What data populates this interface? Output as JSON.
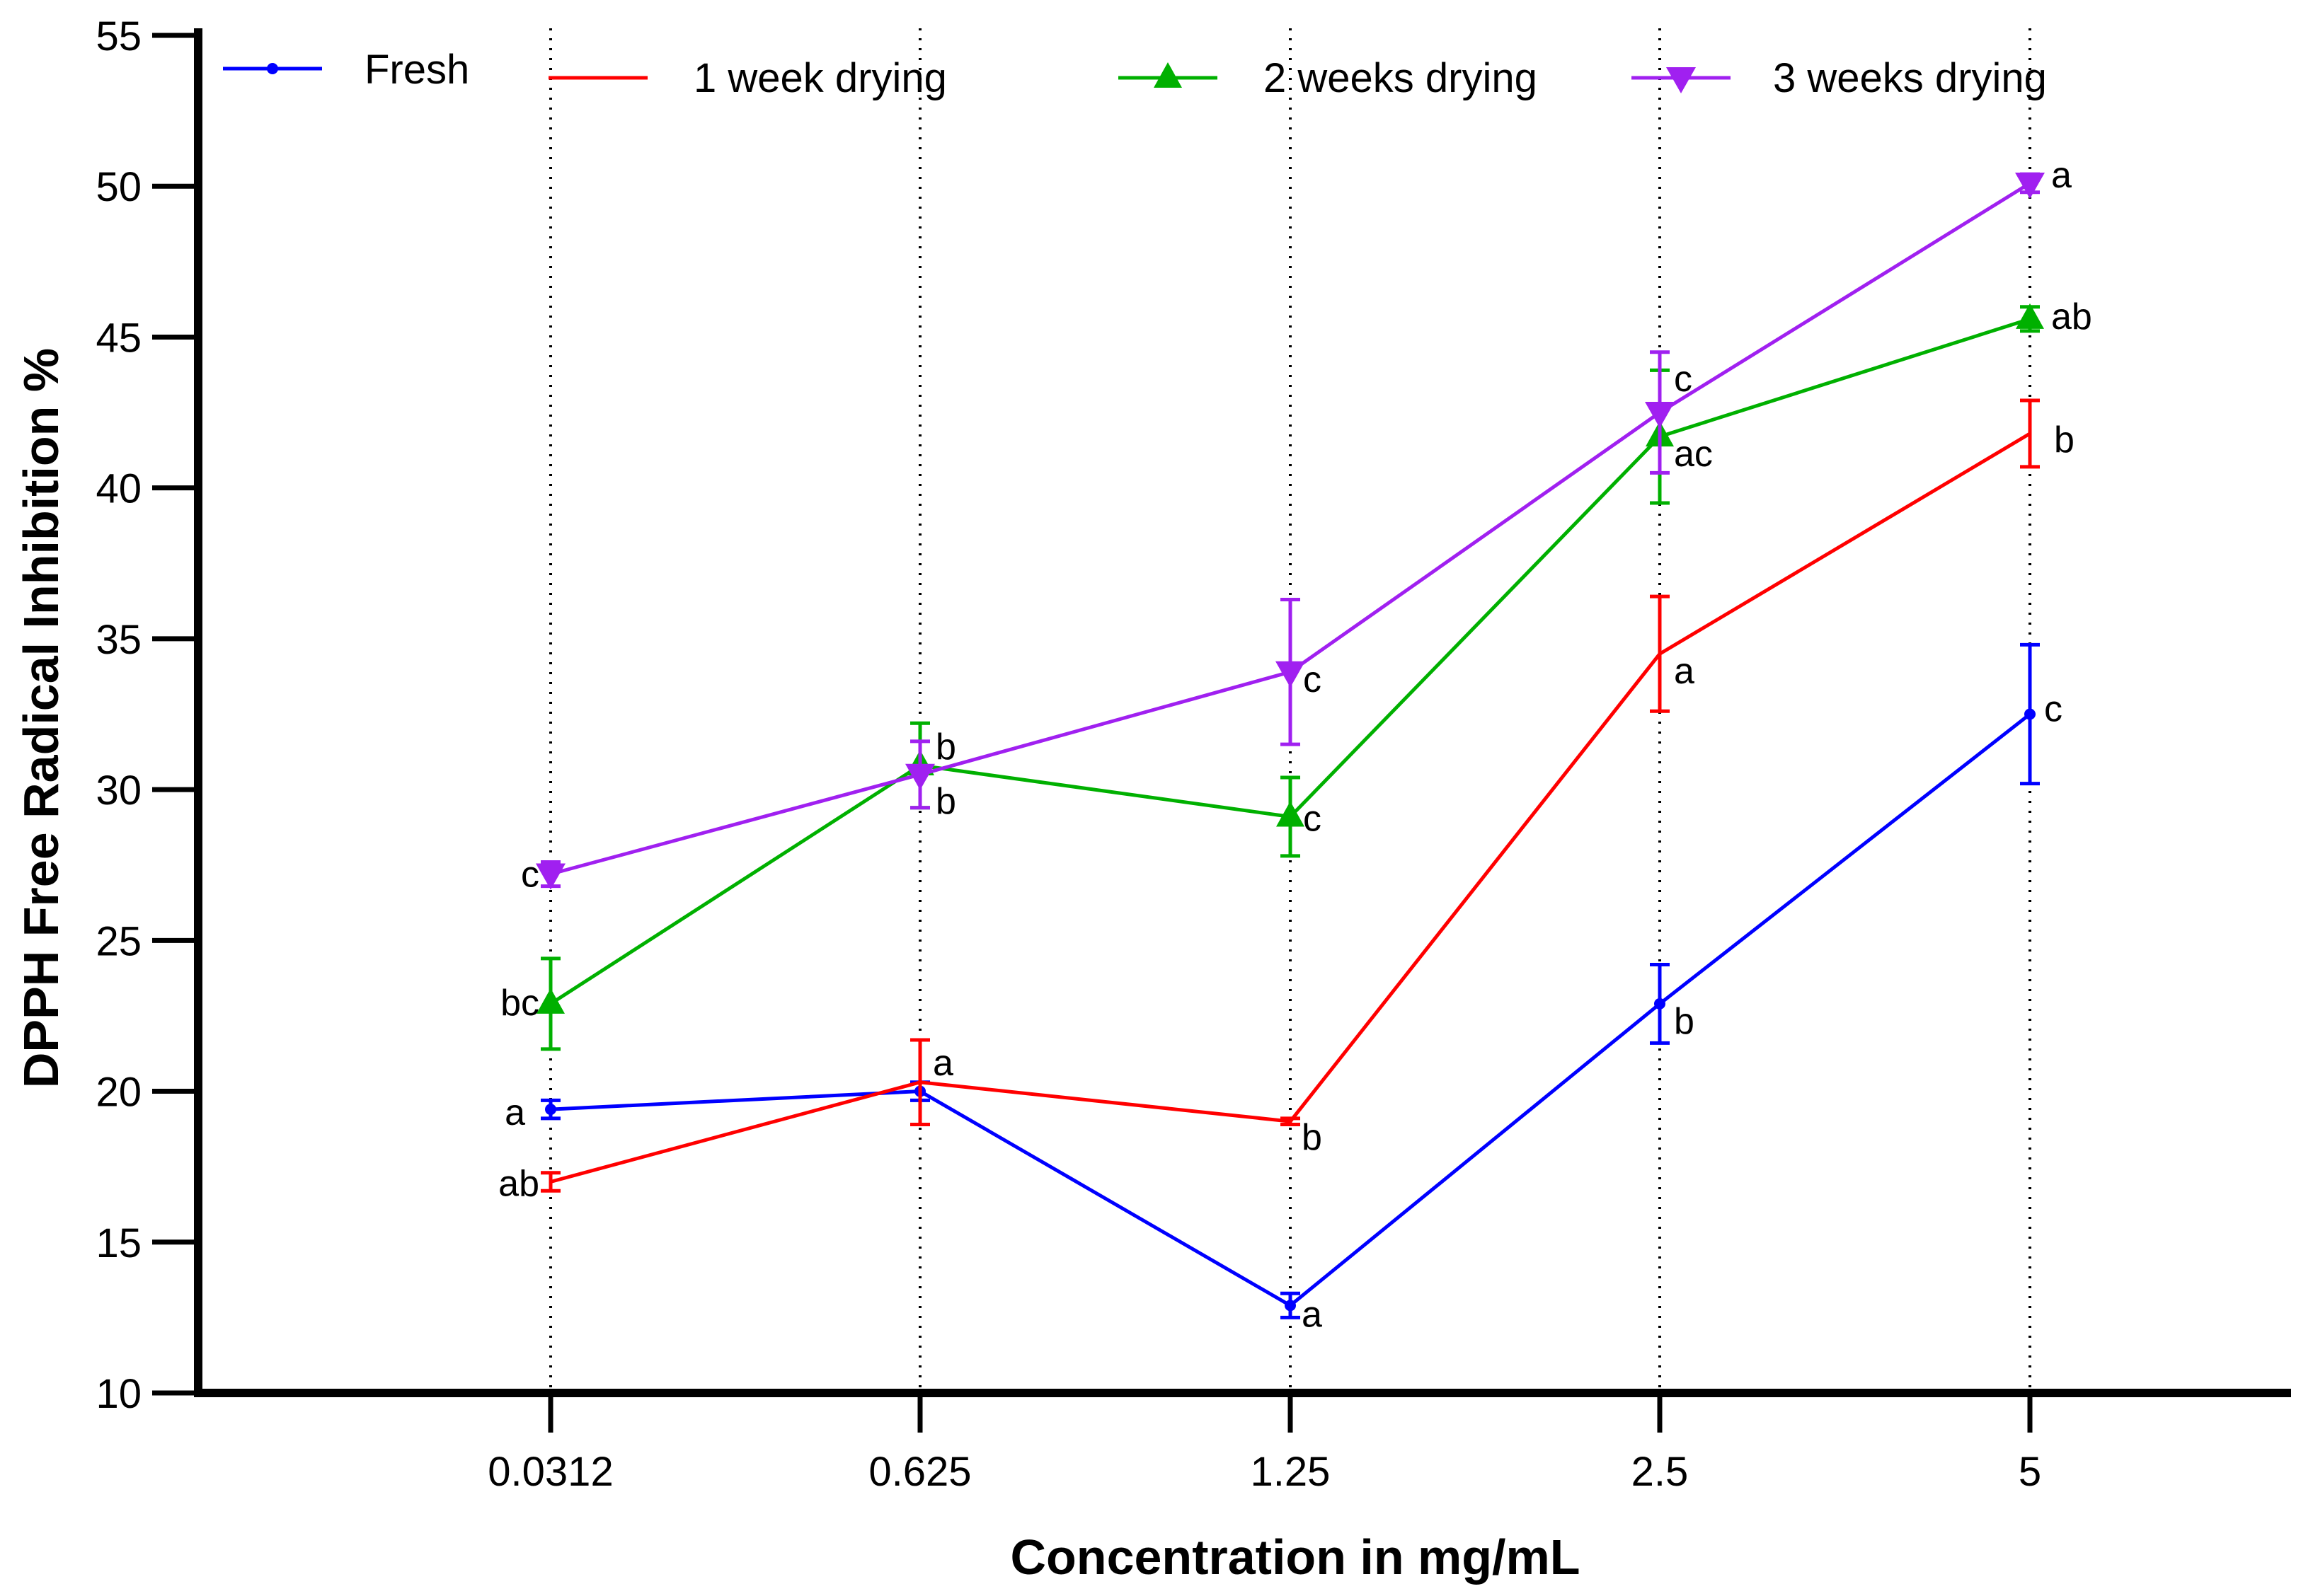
{
  "chart_data": {
    "type": "line",
    "xlabel": "Concentration in mg/mL",
    "ylabel": "DPPH Free Radical Inhibition %",
    "categories": [
      "0.0312",
      "0.625",
      "1.25",
      "2.5",
      "5"
    ],
    "ylim": [
      10,
      55
    ],
    "yticks": [
      10,
      15,
      20,
      25,
      30,
      35,
      40,
      45,
      50,
      55
    ],
    "grid": "vertical dotted lines at each category",
    "legend_position": "top",
    "series": [
      {
        "name": "Fresh",
        "color": "#0000ff",
        "marker": "dot",
        "values": [
          19.4,
          20.0,
          12.9,
          22.9,
          32.5
        ],
        "errors": [
          0.3,
          0.3,
          0.4,
          1.3,
          2.3
        ],
        "labels": [
          "a",
          "",
          "a",
          "b",
          "c"
        ]
      },
      {
        "name": "1 week drying",
        "color": "#ff0000",
        "marker": "none",
        "values": [
          17.0,
          20.3,
          19.0,
          34.5,
          41.8
        ],
        "errors": [
          0.3,
          1.4,
          0.1,
          1.9,
          1.1
        ],
        "labels": [
          "ab",
          "a",
          "b",
          "a",
          "b"
        ]
      },
      {
        "name": "2 weeks drying",
        "color": "#00b000",
        "marker": "triangle-up",
        "values": [
          22.9,
          30.8,
          29.1,
          41.7,
          45.6
        ],
        "errors": [
          1.5,
          1.4,
          1.3,
          2.2,
          0.4
        ],
        "labels": [
          "bc",
          "b",
          "c",
          "ac",
          "ab"
        ]
      },
      {
        "name": "3 weeks drying",
        "color": "#a020f0",
        "marker": "triangle-down",
        "values": [
          27.2,
          30.5,
          33.9,
          42.5,
          50.1
        ],
        "errors": [
          0.4,
          1.1,
          2.4,
          2.0,
          0.3
        ],
        "labels": [
          "c",
          "b",
          "c",
          "c",
          "a"
        ]
      }
    ]
  }
}
